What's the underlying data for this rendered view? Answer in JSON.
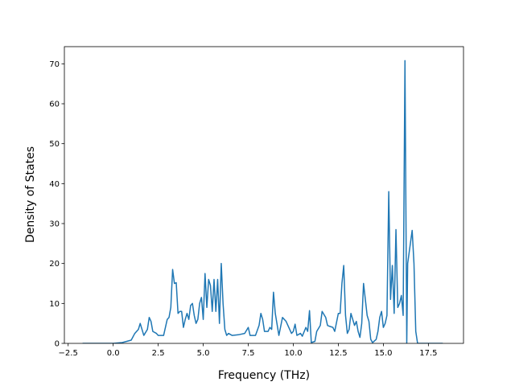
{
  "chart_data": {
    "type": "line",
    "xlabel": "Frequency (THz)",
    "ylabel": "Density of States",
    "xlim": [
      -2.71,
      19.45
    ],
    "ylim": [
      0,
      74.3
    ],
    "xticks": [
      {
        "value": -2.5,
        "label": "−2.5"
      },
      {
        "value": 0,
        "label": "0.0"
      },
      {
        "value": 2.5,
        "label": "2.5"
      },
      {
        "value": 5,
        "label": "5.0"
      },
      {
        "value": 7.5,
        "label": "7.5"
      },
      {
        "value": 10,
        "label": "10.0"
      },
      {
        "value": 12.5,
        "label": "12.5"
      },
      {
        "value": 15,
        "label": "15.0"
      },
      {
        "value": 17.5,
        "label": "17.5"
      }
    ],
    "yticks": [
      0,
      10,
      20,
      30,
      40,
      50,
      60,
      70
    ],
    "series": [
      {
        "color": "#1f77b4",
        "x": [
          -1.7,
          0,
          0.5,
          1.0,
          1.2,
          1.4,
          1.5,
          1.7,
          1.9,
          2.0,
          2.1,
          2.2,
          2.4,
          2.5,
          2.8,
          3.0,
          3.1,
          3.2,
          3.3,
          3.4,
          3.5,
          3.6,
          3.7,
          3.8,
          3.9,
          4.0,
          4.1,
          4.2,
          4.3,
          4.4,
          4.5,
          4.6,
          4.7,
          4.8,
          4.9,
          5.0,
          5.1,
          5.2,
          5.3,
          5.4,
          5.5,
          5.6,
          5.7,
          5.8,
          5.9,
          6.0,
          6.1,
          6.2,
          6.3,
          6.4,
          6.6,
          7.0,
          7.3,
          7.5,
          7.6,
          7.9,
          8.1,
          8.2,
          8.3,
          8.4,
          8.6,
          8.7,
          8.8,
          8.9,
          9.0,
          9.2,
          9.4,
          9.6,
          9.7,
          9.9,
          10.0,
          10.1,
          10.2,
          10.4,
          10.5,
          10.7,
          10.8,
          10.9,
          11.0,
          11.2,
          11.3,
          11.5,
          11.6,
          11.8,
          11.9,
          12.0,
          12.2,
          12.3,
          12.5,
          12.6,
          12.7,
          12.8,
          12.9,
          13.0,
          13.1,
          13.2,
          13.3,
          13.4,
          13.5,
          13.6,
          13.7,
          13.8,
          13.9,
          14.0,
          14.1,
          14.2,
          14.3,
          14.4,
          14.6,
          14.7,
          14.8,
          14.9,
          15.0,
          15.1,
          15.2,
          15.3,
          15.4,
          15.5,
          15.6,
          15.7,
          15.8,
          15.9,
          16.0,
          16.1,
          16.2,
          16.3,
          16.35,
          16.5,
          16.6,
          16.7,
          16.8,
          16.9,
          18.3
        ],
        "values": [
          0,
          0,
          0.2,
          0.8,
          2.5,
          3.5,
          5,
          2,
          3.5,
          6.5,
          5.5,
          3,
          2.5,
          2,
          2,
          6,
          6.5,
          9,
          18.5,
          15,
          15.2,
          7.5,
          8,
          8,
          4,
          6,
          7.5,
          6,
          9.5,
          10,
          7,
          5,
          6,
          10,
          11.5,
          6,
          17.5,
          9,
          16,
          14.5,
          8,
          16,
          8,
          16,
          5,
          20,
          10,
          3.5,
          2,
          2.5,
          2,
          2.2,
          2.5,
          4,
          2,
          2,
          4.5,
          7.5,
          6,
          3,
          3,
          4,
          3.5,
          12.8,
          7.5,
          2,
          6.5,
          5.5,
          4.5,
          2.5,
          3,
          4.8,
          2,
          2.5,
          1.8,
          4,
          3,
          8.2,
          0.2,
          0.5,
          3,
          4.5,
          8,
          6.5,
          4.5,
          4.3,
          4,
          3,
          7.5,
          7.5,
          15,
          19.5,
          7,
          2.5,
          3.5,
          7.5,
          6,
          4.5,
          5.5,
          3,
          1.5,
          5,
          15,
          11,
          7,
          5.5,
          1,
          0.2,
          1,
          3,
          6.5,
          8,
          4,
          5,
          7,
          38,
          11,
          19.5,
          7.5,
          28.5,
          9,
          10,
          12,
          7,
          70.8,
          0,
          20,
          25,
          28.3,
          20,
          3,
          0,
          0
        ]
      }
    ]
  }
}
